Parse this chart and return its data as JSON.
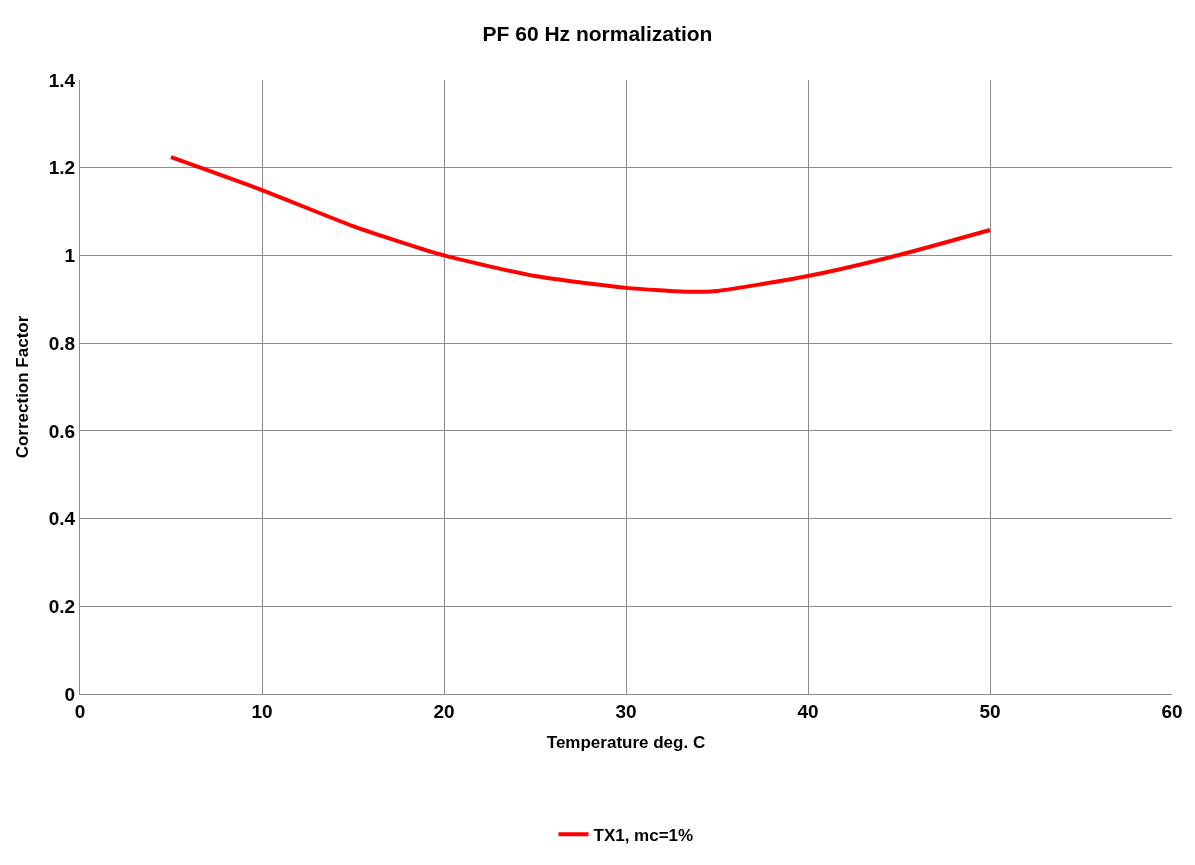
{
  "chart_data": {
    "type": "line",
    "title": "PF 60 Hz normalization",
    "xlabel": "Temperature deg. C",
    "ylabel": "Correction Factor",
    "x": [
      5,
      10,
      15,
      20,
      25,
      30,
      33.5,
      35,
      40,
      45,
      50
    ],
    "series": [
      {
        "name": "TX1, mc=1%",
        "color": "#ff0000",
        "values": [
          1.224,
          1.149,
          1.067,
          1.0,
          0.953,
          0.926,
          0.917,
          0.919,
          0.953,
          1.001,
          1.058
        ]
      }
    ],
    "xlim": [
      0,
      60
    ],
    "xticks": [
      0,
      10,
      20,
      30,
      40,
      50,
      60
    ],
    "ylim": [
      0,
      1.4
    ],
    "yticks": [
      0,
      0.2,
      0.4,
      0.6,
      0.8,
      1,
      1.2,
      1.4
    ],
    "grid": true,
    "legend": "bottom",
    "marker": "none",
    "line_style": "solid"
  }
}
